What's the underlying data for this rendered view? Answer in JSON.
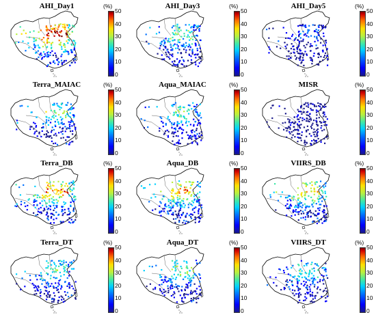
{
  "panels": [
    {
      "title": "AHI_Day1",
      "density": 0.85,
      "level": 0.55
    },
    {
      "title": "AHI_Day3",
      "density": 0.8,
      "level": 0.3
    },
    {
      "title": "AHI_Day5",
      "density": 0.75,
      "level": 0.12
    },
    {
      "title": "Terra_MAIAC",
      "density": 0.7,
      "level": 0.3
    },
    {
      "title": "Aqua_MAIAC",
      "density": 0.68,
      "level": 0.28
    },
    {
      "title": "MISR",
      "density": 0.8,
      "level": 0.05
    },
    {
      "title": "Terra_DB",
      "density": 0.85,
      "level": 0.45
    },
    {
      "title": "Aqua_DB",
      "density": 0.85,
      "level": 0.42
    },
    {
      "title": "VIIRS_DB",
      "density": 0.85,
      "level": 0.4
    },
    {
      "title": "Terra_DT",
      "density": 0.7,
      "level": 0.28
    },
    {
      "title": "Aqua_DT",
      "density": 0.72,
      "level": 0.3
    },
    {
      "title": "VIIRS_DT",
      "density": 0.7,
      "level": 0.25
    }
  ],
  "colorbar": {
    "unit": "(%)",
    "ticks": [
      "50",
      "40",
      "30",
      "20",
      "10",
      "0"
    ]
  },
  "colors": {
    "boundary": "#000000",
    "island": "#444444",
    "scale": [
      "#1a1a8a",
      "#0000ff",
      "#0070ff",
      "#00d0ff",
      "#3fe8a8",
      "#b8f040",
      "#ffe000",
      "#ff7000",
      "#d00000",
      "#7a0000"
    ]
  }
}
